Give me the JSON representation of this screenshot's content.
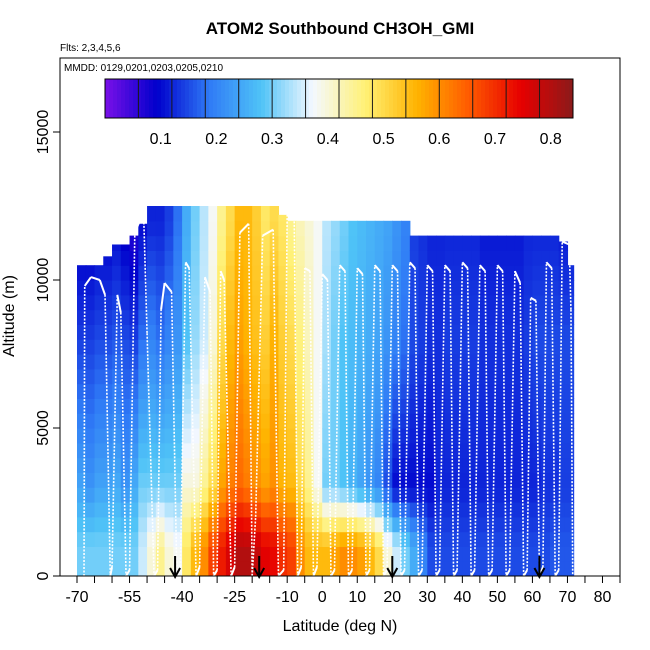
{
  "chart_data": {
    "type": "heatmap",
    "title": "ATOM2 Southbound CH3OH_GMI",
    "notes": [
      "Flts: 2,3,4,5,6",
      "MMDD: 0129,0201,0203,0205,0210"
    ],
    "xlabel": "Latitude (deg N)",
    "ylabel": "Altitude (m)",
    "xlim": [
      -70,
      85
    ],
    "ylim": [
      0,
      17500
    ],
    "xticks": [
      {
        "value": -70,
        "label": "-70"
      },
      {
        "value": -55,
        "label": "-55"
      },
      {
        "value": -40,
        "label": "-40"
      },
      {
        "value": -25,
        "label": "-25"
      },
      {
        "value": -10,
        "label": "-10"
      },
      {
        "value": 0,
        "label": "0"
      },
      {
        "value": 10,
        "label": "10"
      },
      {
        "value": 20,
        "label": "20"
      },
      {
        "value": 30,
        "label": "30"
      },
      {
        "value": 40,
        "label": "40"
      },
      {
        "value": 50,
        "label": "50"
      },
      {
        "value": 60,
        "label": "60"
      },
      {
        "value": 70,
        "label": "70"
      },
      {
        "value": 80,
        "label": "80"
      }
    ],
    "yticks": [
      {
        "value": 0,
        "label": "0"
      },
      {
        "value": 5000,
        "label": "5000"
      },
      {
        "value": 10000,
        "label": "10000"
      },
      {
        "value": 15000,
        "label": "15000"
      }
    ],
    "colorbar": {
      "range": [
        0.0,
        0.84
      ],
      "ticks": [
        {
          "value": 0.1,
          "label": "0.1"
        },
        {
          "value": 0.2,
          "label": "0.2"
        },
        {
          "value": 0.3,
          "label": "0.3"
        },
        {
          "value": 0.4,
          "label": "0.4"
        },
        {
          "value": 0.5,
          "label": "0.5"
        },
        {
          "value": 0.6,
          "label": "0.6"
        },
        {
          "value": 0.7,
          "label": "0.7"
        },
        {
          "value": 0.8,
          "label": "0.8"
        }
      ],
      "colors": [
        "#7a10e8",
        "#0000cc",
        "#2f7af6",
        "#4fc3f7",
        "#f4f8ff",
        "#fff176",
        "#ffb300",
        "#ff5a00",
        "#e60000",
        "#8b1a1a"
      ]
    },
    "cell_width_deg": 2.5,
    "columns": [
      {
        "lat": -68.75,
        "top": 10500,
        "surf": 0.3,
        "mid": 0.24,
        "upper": 0.14,
        "ut": 0.08
      },
      {
        "lat": -66.25,
        "top": 10500,
        "surf": 0.3,
        "mid": 0.22,
        "upper": 0.14,
        "ut": 0.08
      },
      {
        "lat": -63.75,
        "top": 10500,
        "surf": 0.3,
        "mid": 0.24,
        "upper": 0.15,
        "ut": 0.09
      },
      {
        "lat": -61.25,
        "top": 10800,
        "surf": 0.3,
        "mid": 0.24,
        "upper": 0.15,
        "ut": 0.09
      },
      {
        "lat": -58.75,
        "top": 11200,
        "surf": 0.3,
        "mid": 0.25,
        "upper": 0.16,
        "ut": 0.1
      },
      {
        "lat": -56.25,
        "top": 11200,
        "surf": 0.3,
        "mid": 0.22,
        "upper": 0.15,
        "ut": 0.08
      },
      {
        "lat": -53.75,
        "top": 11500,
        "surf": 0.3,
        "mid": 0.25,
        "upper": 0.14,
        "ut": 0.06
      },
      {
        "lat": -51.25,
        "top": 11900,
        "surf": 0.35,
        "mid": 0.3,
        "upper": 0.18,
        "ut": 0.1
      },
      {
        "lat": -48.75,
        "top": 12500,
        "surf": 0.4,
        "mid": 0.3,
        "upper": 0.2,
        "ut": 0.12
      },
      {
        "lat": -46.25,
        "top": 12500,
        "surf": 0.45,
        "mid": 0.3,
        "upper": 0.18,
        "ut": 0.12
      },
      {
        "lat": -43.75,
        "top": 12500,
        "surf": 0.4,
        "mid": 0.3,
        "upper": 0.2,
        "ut": 0.14
      },
      {
        "lat": -41.25,
        "top": 12500,
        "surf": 0.38,
        "mid": 0.3,
        "upper": 0.22,
        "ut": 0.18
      },
      {
        "lat": -38.75,
        "top": 12500,
        "surf": 0.48,
        "mid": 0.4,
        "upper": 0.28,
        "ut": 0.25
      },
      {
        "lat": -36.25,
        "top": 12500,
        "surf": 0.55,
        "mid": 0.4,
        "upper": 0.32,
        "ut": 0.3
      },
      {
        "lat": -33.75,
        "top": 12500,
        "surf": 0.6,
        "mid": 0.45,
        "upper": 0.35,
        "ut": 0.34
      },
      {
        "lat": -31.25,
        "top": 12500,
        "surf": 0.68,
        "mid": 0.5,
        "upper": 0.4,
        "ut": 0.38
      },
      {
        "lat": -28.75,
        "top": 12500,
        "surf": 0.72,
        "mid": 0.58,
        "upper": 0.5,
        "ut": 0.45
      },
      {
        "lat": -26.25,
        "top": 12500,
        "surf": 0.76,
        "mid": 0.62,
        "upper": 0.55,
        "ut": 0.5
      },
      {
        "lat": -23.75,
        "top": 12500,
        "surf": 0.8,
        "mid": 0.64,
        "upper": 0.58,
        "ut": 0.55
      },
      {
        "lat": -21.25,
        "top": 12500,
        "surf": 0.8,
        "mid": 0.62,
        "upper": 0.56,
        "ut": 0.55
      },
      {
        "lat": -18.75,
        "top": 12500,
        "surf": 0.78,
        "mid": 0.6,
        "upper": 0.54,
        "ut": 0.52
      },
      {
        "lat": -16.25,
        "top": 12500,
        "surf": 0.75,
        "mid": 0.58,
        "upper": 0.52,
        "ut": 0.48
      },
      {
        "lat": -13.75,
        "top": 12500,
        "surf": 0.74,
        "mid": 0.6,
        "upper": 0.56,
        "ut": 0.5
      },
      {
        "lat": -11.25,
        "top": 12200,
        "surf": 0.7,
        "mid": 0.56,
        "upper": 0.52,
        "ut": 0.48
      },
      {
        "lat": -8.75,
        "top": 12000,
        "surf": 0.68,
        "mid": 0.55,
        "upper": 0.5,
        "ut": 0.45
      },
      {
        "lat": -6.25,
        "top": 12000,
        "surf": 0.6,
        "mid": 0.5,
        "upper": 0.46,
        "ut": 0.42
      },
      {
        "lat": -3.75,
        "top": 12000,
        "surf": 0.55,
        "mid": 0.45,
        "upper": 0.42,
        "ut": 0.4
      },
      {
        "lat": -1.25,
        "top": 12000,
        "surf": 0.55,
        "mid": 0.38,
        "upper": 0.38,
        "ut": 0.38
      },
      {
        "lat": 1.25,
        "top": 12000,
        "surf": 0.55,
        "mid": 0.3,
        "upper": 0.33,
        "ut": 0.34
      },
      {
        "lat": 3.75,
        "top": 12000,
        "surf": 0.58,
        "mid": 0.3,
        "upper": 0.3,
        "ut": 0.32
      },
      {
        "lat": 6.25,
        "top": 12000,
        "surf": 0.6,
        "mid": 0.28,
        "upper": 0.28,
        "ut": 0.3
      },
      {
        "lat": 8.75,
        "top": 12000,
        "surf": 0.6,
        "mid": 0.26,
        "upper": 0.27,
        "ut": 0.28
      },
      {
        "lat": 11.25,
        "top": 12000,
        "surf": 0.58,
        "mid": 0.24,
        "upper": 0.26,
        "ut": 0.27
      },
      {
        "lat": 13.75,
        "top": 12000,
        "surf": 0.55,
        "mid": 0.22,
        "upper": 0.25,
        "ut": 0.26
      },
      {
        "lat": 16.25,
        "top": 12000,
        "surf": 0.5,
        "mid": 0.2,
        "upper": 0.24,
        "ut": 0.25
      },
      {
        "lat": 18.75,
        "top": 12000,
        "surf": 0.4,
        "mid": 0.15,
        "upper": 0.22,
        "ut": 0.24
      },
      {
        "lat": 21.25,
        "top": 12000,
        "surf": 0.35,
        "mid": 0.1,
        "upper": 0.2,
        "ut": 0.22
      },
      {
        "lat": 23.75,
        "top": 12000,
        "surf": 0.3,
        "mid": 0.1,
        "upper": 0.18,
        "ut": 0.2
      },
      {
        "lat": 26.25,
        "top": 11500,
        "surf": 0.25,
        "mid": 0.1,
        "upper": 0.15,
        "ut": 0.14
      },
      {
        "lat": 28.75,
        "top": 11500,
        "surf": 0.2,
        "mid": 0.1,
        "upper": 0.14,
        "ut": 0.13
      },
      {
        "lat": 31.25,
        "top": 11500,
        "surf": 0.15,
        "mid": 0.1,
        "upper": 0.13,
        "ut": 0.12
      },
      {
        "lat": 33.75,
        "top": 11500,
        "surf": 0.15,
        "mid": 0.12,
        "upper": 0.13,
        "ut": 0.12
      },
      {
        "lat": 36.25,
        "top": 11500,
        "surf": 0.15,
        "mid": 0.12,
        "upper": 0.14,
        "ut": 0.12
      },
      {
        "lat": 38.75,
        "top": 11500,
        "surf": 0.15,
        "mid": 0.12,
        "upper": 0.14,
        "ut": 0.12
      },
      {
        "lat": 41.25,
        "top": 11500,
        "surf": 0.15,
        "mid": 0.12,
        "upper": 0.14,
        "ut": 0.12
      },
      {
        "lat": 43.75,
        "top": 11500,
        "surf": 0.15,
        "mid": 0.12,
        "upper": 0.14,
        "ut": 0.12
      },
      {
        "lat": 46.25,
        "top": 11500,
        "surf": 0.15,
        "mid": 0.12,
        "upper": 0.13,
        "ut": 0.11
      },
      {
        "lat": 48.75,
        "top": 11500,
        "surf": 0.15,
        "mid": 0.12,
        "upper": 0.13,
        "ut": 0.11
      },
      {
        "lat": 51.25,
        "top": 11500,
        "surf": 0.15,
        "mid": 0.12,
        "upper": 0.13,
        "ut": 0.11
      },
      {
        "lat": 53.75,
        "top": 11500,
        "surf": 0.15,
        "mid": 0.12,
        "upper": 0.13,
        "ut": 0.11
      },
      {
        "lat": 56.25,
        "top": 11500,
        "surf": 0.15,
        "mid": 0.12,
        "upper": 0.13,
        "ut": 0.11
      },
      {
        "lat": 58.75,
        "top": 11500,
        "surf": 0.15,
        "mid": 0.12,
        "upper": 0.14,
        "ut": 0.12
      },
      {
        "lat": 61.25,
        "top": 11500,
        "surf": 0.15,
        "mid": 0.12,
        "upper": 0.15,
        "ut": 0.12
      },
      {
        "lat": 63.75,
        "top": 11500,
        "surf": 0.15,
        "mid": 0.13,
        "upper": 0.15,
        "ut": 0.12
      },
      {
        "lat": 66.25,
        "top": 11500,
        "surf": 0.16,
        "mid": 0.13,
        "upper": 0.15,
        "ut": 0.12
      },
      {
        "lat": 68.75,
        "top": 11300,
        "surf": 0.16,
        "mid": 0.14,
        "upper": 0.15,
        "ut": 0.11
      },
      {
        "lat": 70.5,
        "top": 10500,
        "surf": 0.16,
        "mid": 0.14,
        "upper": 0.15,
        "ut": 0.11
      }
    ],
    "flight_path": [
      [
        -68,
        0
      ],
      [
        -67.8,
        9800
      ],
      [
        -66,
        10100
      ],
      [
        -63.5,
        10000
      ],
      [
        -62,
        9500
      ],
      [
        -60.5,
        0
      ],
      [
        -60,
        300
      ],
      [
        -58.5,
        9500
      ],
      [
        -57.5,
        8900
      ],
      [
        -56,
        0
      ],
      [
        -55,
        200
      ],
      [
        -53.5,
        11600
      ],
      [
        -51,
        12300
      ],
      [
        -50,
        8200
      ],
      [
        -48,
        0
      ],
      [
        -47,
        200
      ],
      [
        -46,
        9000
      ],
      [
        -45,
        9900
      ],
      [
        -43,
        9600
      ],
      [
        -41.5,
        0
      ],
      [
        -40.5,
        200
      ],
      [
        -39,
        10600
      ],
      [
        -38,
        10400
      ],
      [
        -36,
        0
      ],
      [
        -35,
        300
      ],
      [
        -33.5,
        10100
      ],
      [
        -32,
        9600
      ],
      [
        -31,
        0
      ],
      [
        -30,
        200
      ],
      [
        -29,
        10300
      ],
      [
        -28,
        10000
      ],
      [
        -26,
        0
      ],
      [
        -25,
        300
      ],
      [
        -23.5,
        11600
      ],
      [
        -21,
        11900
      ],
      [
        -20,
        0
      ],
      [
        -19,
        2000
      ],
      [
        -17,
        11500
      ],
      [
        -14,
        11700
      ],
      [
        -12.5,
        0
      ],
      [
        -11,
        200
      ],
      [
        -10,
        12200
      ],
      [
        -8,
        12100
      ],
      [
        -7,
        0
      ],
      [
        -6,
        300
      ],
      [
        -5,
        10400
      ],
      [
        -3.5,
        10300
      ],
      [
        -2.5,
        0
      ],
      [
        -1.5,
        300
      ],
      [
        0,
        10200
      ],
      [
        1.5,
        10000
      ],
      [
        2.5,
        0
      ],
      [
        3.5,
        200
      ],
      [
        5,
        10500
      ],
      [
        6.5,
        10300
      ],
      [
        7.5,
        0
      ],
      [
        8.5,
        200
      ],
      [
        10,
        10400
      ],
      [
        11.5,
        10200
      ],
      [
        12.5,
        0
      ],
      [
        13.5,
        200
      ],
      [
        15,
        10500
      ],
      [
        16.5,
        10300
      ],
      [
        17.5,
        0
      ],
      [
        18.5,
        200
      ],
      [
        20,
        10500
      ],
      [
        21.5,
        10300
      ],
      [
        22.5,
        0
      ],
      [
        23.5,
        200
      ],
      [
        25,
        10600
      ],
      [
        26.5,
        10400
      ],
      [
        27.5,
        0
      ],
      [
        28.5,
        200
      ],
      [
        30,
        10500
      ],
      [
        31.5,
        10300
      ],
      [
        32.5,
        0
      ],
      [
        33.5,
        200
      ],
      [
        35,
        10500
      ],
      [
        36.5,
        10300
      ],
      [
        37.5,
        0
      ],
      [
        38.5,
        200
      ],
      [
        40,
        10600
      ],
      [
        41.5,
        10400
      ],
      [
        42.5,
        0
      ],
      [
        43.5,
        200
      ],
      [
        45,
        10500
      ],
      [
        46.5,
        10300
      ],
      [
        47.5,
        0
      ],
      [
        48.5,
        200
      ],
      [
        50,
        10500
      ],
      [
        51.5,
        10300
      ],
      [
        52.5,
        0
      ],
      [
        53.5,
        200
      ],
      [
        55,
        10300
      ],
      [
        56.5,
        9900
      ],
      [
        57.5,
        0
      ],
      [
        58.5,
        200
      ],
      [
        59.5,
        9400
      ],
      [
        61,
        9300
      ],
      [
        62,
        0
      ],
      [
        63,
        300
      ],
      [
        64,
        10600
      ],
      [
        65.5,
        10400
      ],
      [
        66.5,
        0
      ],
      [
        67.5,
        200
      ],
      [
        68.5,
        11300
      ],
      [
        70.5,
        11200
      ],
      [
        71,
        9000
      ],
      [
        71.5,
        0
      ]
    ],
    "arrows": [
      -42,
      -18,
      20,
      62
    ]
  }
}
